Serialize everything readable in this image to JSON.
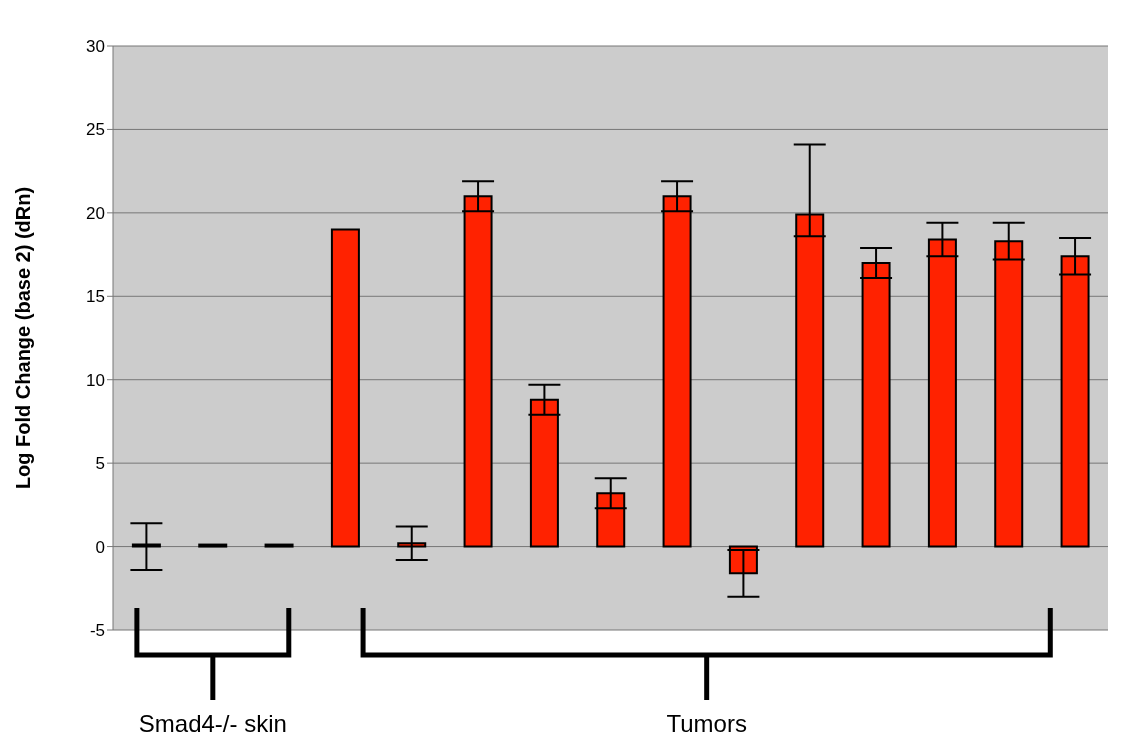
{
  "chart_data": {
    "type": "bar",
    "ylabel": "Log Fold Change (base 2) (dRn)",
    "categories": [
      null,
      null,
      null,
      null,
      null,
      null,
      null,
      null,
      null,
      null,
      null,
      null,
      null,
      null,
      null
    ],
    "values": [
      0,
      0,
      0,
      19,
      0.2,
      21,
      8.8,
      3.2,
      21,
      -1.6,
      19.9,
      17,
      18.4,
      18.3,
      17.4
    ],
    "errors": [
      1.4,
      null,
      null,
      null,
      1,
      0.9,
      0.9,
      0.9,
      0.9,
      1.4,
      [
        18.6,
        24.1
      ],
      0.9,
      1,
      1.1,
      1.1
    ],
    "color": "#ff2200",
    "ylim": [
      -5,
      30
    ],
    "yticks": [
      -5,
      0,
      5,
      10,
      15,
      20,
      25,
      30
    ],
    "grid": "y",
    "legend": false,
    "annotations": [
      "Smad4-/- skin",
      "Tumors"
    ]
  }
}
